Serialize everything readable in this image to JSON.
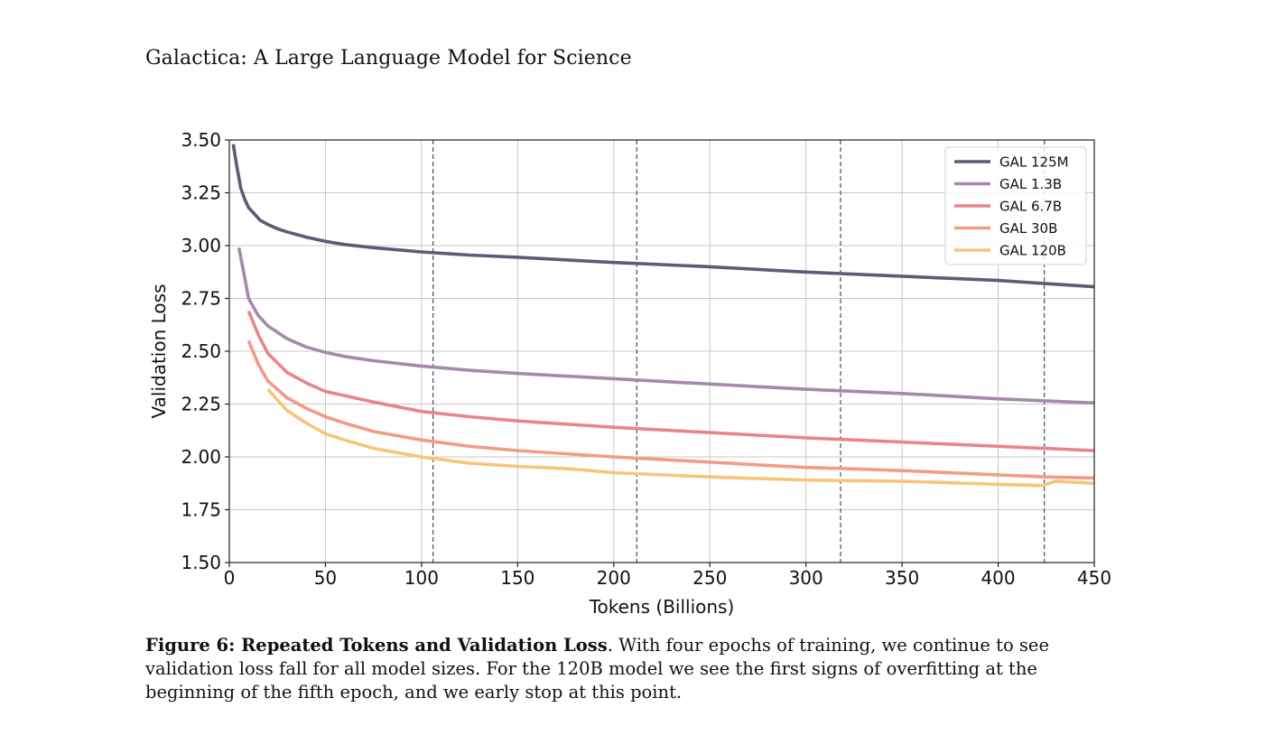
{
  "header": {
    "running_title": "Galactica: A Large Language Model for Science"
  },
  "caption": {
    "label": "Figure 6: Repeated Tokens and Validation Loss",
    "text": ". With four epochs of training, we continue to see validation loss fall for all model sizes. For the 120B model we see the first signs of overfitting at the beginning of the fifth epoch, and we early stop at this point."
  },
  "chart_data": {
    "type": "line",
    "title": "",
    "xlabel": "Tokens (Billions)",
    "ylabel": "Validation Loss",
    "xlim": [
      0,
      450
    ],
    "ylim": [
      1.5,
      3.5
    ],
    "xticks": [
      0,
      50,
      100,
      150,
      200,
      250,
      300,
      350,
      400,
      450
    ],
    "yticks": [
      1.5,
      1.75,
      2.0,
      2.25,
      2.5,
      2.75,
      3.0,
      3.25,
      3.5
    ],
    "ytick_labels": [
      "1.50",
      "1.75",
      "2.00",
      "2.25",
      "2.50",
      "2.75",
      "3.00",
      "3.25",
      "3.50"
    ],
    "xtick_labels": [
      "0",
      "50",
      "100",
      "150",
      "200",
      "250",
      "300",
      "350",
      "400",
      "450"
    ],
    "grid": true,
    "legend_position": "top-right",
    "epoch_boundaries": [
      106,
      212,
      318,
      424
    ],
    "series": [
      {
        "name": "GAL 125M",
        "color": "#5e5a78",
        "x": [
          2,
          4,
          6,
          8,
          10,
          13,
          16,
          20,
          25,
          30,
          40,
          50,
          60,
          75,
          100,
          125,
          150,
          200,
          250,
          300,
          350,
          400,
          450
        ],
        "y": [
          3.48,
          3.37,
          3.27,
          3.22,
          3.18,
          3.15,
          3.12,
          3.1,
          3.08,
          3.065,
          3.04,
          3.02,
          3.005,
          2.99,
          2.97,
          2.955,
          2.945,
          2.92,
          2.9,
          2.875,
          2.855,
          2.835,
          2.805
        ]
      },
      {
        "name": "GAL 1.3B",
        "color": "#a48aaa",
        "x": [
          5,
          8,
          10,
          15,
          20,
          30,
          40,
          50,
          60,
          75,
          100,
          125,
          150,
          200,
          250,
          300,
          350,
          400,
          450
        ],
        "y": [
          2.99,
          2.85,
          2.75,
          2.67,
          2.62,
          2.56,
          2.52,
          2.495,
          2.475,
          2.455,
          2.43,
          2.41,
          2.395,
          2.37,
          2.345,
          2.32,
          2.3,
          2.275,
          2.255
        ]
      },
      {
        "name": "GAL 6.7B",
        "color": "#e9848a",
        "x": [
          10,
          15,
          20,
          30,
          40,
          50,
          60,
          75,
          100,
          125,
          150,
          200,
          250,
          300,
          350,
          400,
          450
        ],
        "y": [
          2.69,
          2.58,
          2.49,
          2.4,
          2.35,
          2.31,
          2.29,
          2.26,
          2.215,
          2.19,
          2.17,
          2.14,
          2.115,
          2.09,
          2.07,
          2.05,
          2.03
        ]
      },
      {
        "name": "GAL 30B",
        "color": "#f29c86",
        "x": [
          10,
          15,
          20,
          25,
          30,
          40,
          50,
          60,
          75,
          100,
          125,
          150,
          200,
          250,
          280,
          300,
          320,
          350,
          400,
          425,
          450
        ],
        "y": [
          2.55,
          2.44,
          2.36,
          2.32,
          2.28,
          2.23,
          2.19,
          2.16,
          2.12,
          2.08,
          2.05,
          2.03,
          2.0,
          1.975,
          1.96,
          1.95,
          1.945,
          1.935,
          1.915,
          1.905,
          1.9
        ]
      },
      {
        "name": "GAL 120B",
        "color": "#f7c57a",
        "x": [
          20,
          25,
          30,
          40,
          50,
          60,
          75,
          100,
          125,
          150,
          175,
          200,
          250,
          300,
          350,
          400,
          420,
          423,
          430,
          450
        ],
        "y": [
          2.32,
          2.27,
          2.22,
          2.16,
          2.11,
          2.08,
          2.04,
          2.0,
          1.97,
          1.955,
          1.945,
          1.925,
          1.905,
          1.89,
          1.885,
          1.87,
          1.865,
          1.865,
          1.885,
          1.875
        ]
      }
    ]
  }
}
